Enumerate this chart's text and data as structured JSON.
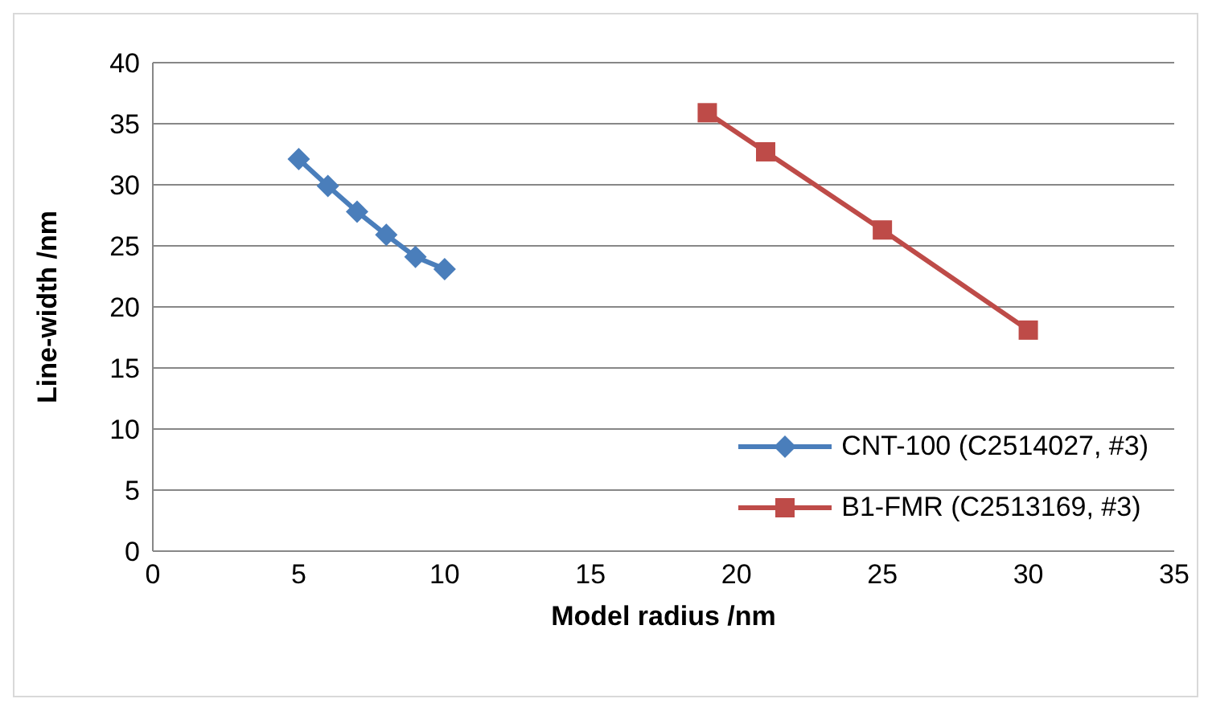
{
  "chart_data": {
    "type": "line",
    "xlabel": "Model radius /nm",
    "ylabel": "Line-width /nm",
    "series": [
      {
        "name": "CNT-100 (C2514027, #3)",
        "color": "#4a7ebb",
        "marker": "diamond",
        "x": [
          5,
          6,
          7,
          8,
          9,
          10
        ],
        "values": [
          32.1,
          29.9,
          27.8,
          25.9,
          24.1,
          23.1
        ]
      },
      {
        "name": "B1-FMR (C2513169, #3)",
        "color": "#be4b48",
        "marker": "square",
        "x": [
          19,
          21,
          25,
          30
        ],
        "values": [
          35.9,
          32.7,
          26.3,
          18.1
        ]
      }
    ],
    "xlim": [
      0,
      35
    ],
    "xticks": [
      0,
      5,
      10,
      15,
      20,
      25,
      30,
      35
    ],
    "ylim": [
      0,
      40
    ],
    "yticks": [
      0,
      5,
      10,
      15,
      20,
      25,
      30,
      35,
      40
    ],
    "grid": "y",
    "legend": "bottom right"
  }
}
